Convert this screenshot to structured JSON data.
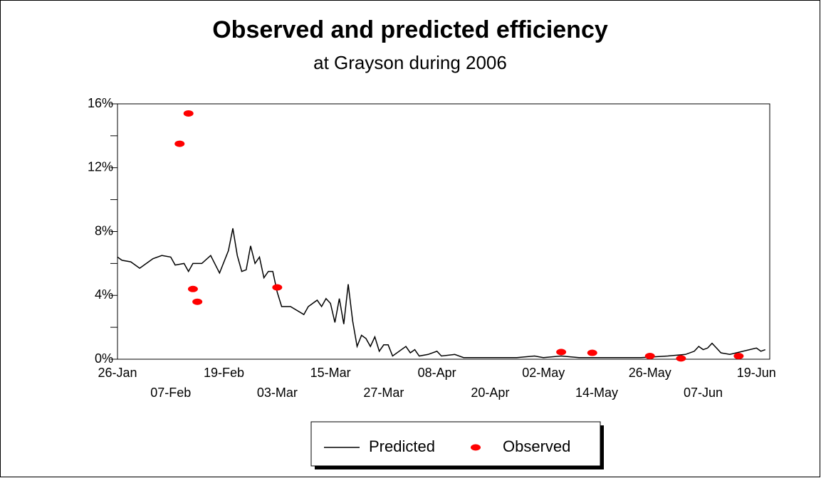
{
  "chart_data": {
    "type": "line",
    "title": "Observed and predicted efficiency",
    "subtitle": "at Grayson during 2006",
    "xlim": [
      "2006-01-26",
      "2006-06-22"
    ],
    "xticks": [
      {
        "value": "2006-01-26",
        "label": "26-Jan"
      },
      {
        "value": "2006-02-07",
        "label": "07-Feb"
      },
      {
        "value": "2006-02-19",
        "label": "19-Feb"
      },
      {
        "value": "2006-03-03",
        "label": "03-Mar"
      },
      {
        "value": "2006-03-15",
        "label": "15-Mar"
      },
      {
        "value": "2006-03-27",
        "label": "27-Mar"
      },
      {
        "value": "2006-04-08",
        "label": "08-Apr"
      },
      {
        "value": "2006-04-20",
        "label": "20-Apr"
      },
      {
        "value": "2006-05-02",
        "label": "02-May"
      },
      {
        "value": "2006-05-14",
        "label": "14-May"
      },
      {
        "value": "2006-05-26",
        "label": "26-May"
      },
      {
        "value": "2006-06-07",
        "label": "07-Jun"
      },
      {
        "value": "2006-06-19",
        "label": "19-Jun"
      }
    ],
    "ylim": [
      0,
      16
    ],
    "yticks": [
      {
        "value": 0,
        "label": "0%"
      },
      {
        "value": 4,
        "label": "4%"
      },
      {
        "value": 8,
        "label": "8%"
      },
      {
        "value": 12,
        "label": "12%"
      },
      {
        "value": 16,
        "label": "16%"
      }
    ],
    "yminor_ticks": [
      2,
      6,
      10,
      14
    ],
    "legend": "bottom",
    "series": [
      {
        "name": "Predicted",
        "color": "#000000",
        "style": "line",
        "x": [
          "2006-01-26",
          "2006-01-27",
          "2006-01-29",
          "2006-01-31",
          "2006-02-02",
          "2006-02-03",
          "2006-02-05",
          "2006-02-07",
          "2006-02-08",
          "2006-02-10",
          "2006-02-11",
          "2006-02-12",
          "2006-02-14",
          "2006-02-16",
          "2006-02-18",
          "2006-02-20",
          "2006-02-21",
          "2006-02-22",
          "2006-02-23",
          "2006-02-24",
          "2006-02-25",
          "2006-02-26",
          "2006-02-27",
          "2006-02-28",
          "2006-03-01",
          "2006-03-02",
          "2006-03-03",
          "2006-03-04",
          "2006-03-06",
          "2006-03-09",
          "2006-03-10",
          "2006-03-12",
          "2006-03-13",
          "2006-03-14",
          "2006-03-15",
          "2006-03-16",
          "2006-03-17",
          "2006-03-18",
          "2006-03-19",
          "2006-03-20",
          "2006-03-21",
          "2006-03-22",
          "2006-03-23",
          "2006-03-24",
          "2006-03-25",
          "2006-03-26",
          "2006-03-27",
          "2006-03-28",
          "2006-03-29",
          "2006-04-01",
          "2006-04-02",
          "2006-04-03",
          "2006-04-04",
          "2006-04-06",
          "2006-04-08",
          "2006-04-09",
          "2006-04-12",
          "2006-04-14",
          "2006-04-21",
          "2006-04-26",
          "2006-04-30",
          "2006-05-02",
          "2006-05-06",
          "2006-05-10",
          "2006-05-16",
          "2006-05-24",
          "2006-05-30",
          "2006-06-03",
          "2006-06-05",
          "2006-06-06",
          "2006-06-07",
          "2006-06-08",
          "2006-06-09",
          "2006-06-10",
          "2006-06-11",
          "2006-06-13",
          "2006-06-16",
          "2006-06-19",
          "2006-06-20",
          "2006-06-21"
        ],
        "values": [
          6.4,
          6.2,
          6.1,
          5.7,
          6.1,
          6.3,
          6.5,
          6.4,
          5.9,
          6.0,
          5.5,
          6.0,
          6.0,
          6.5,
          5.4,
          6.8,
          8.2,
          6.5,
          5.5,
          5.6,
          7.1,
          6.0,
          6.4,
          5.1,
          5.5,
          5.5,
          4.2,
          3.3,
          3.3,
          2.8,
          3.3,
          3.7,
          3.3,
          3.8,
          3.5,
          2.3,
          3.8,
          2.2,
          4.7,
          2.4,
          0.8,
          1.5,
          1.3,
          0.8,
          1.4,
          0.5,
          0.9,
          0.9,
          0.2,
          0.8,
          0.4,
          0.6,
          0.2,
          0.3,
          0.5,
          0.2,
          0.3,
          0.1,
          0.1,
          0.1,
          0.2,
          0.1,
          0.2,
          0.1,
          0.1,
          0.1,
          0.2,
          0.3,
          0.5,
          0.8,
          0.6,
          0.7,
          1.0,
          0.7,
          0.4,
          0.3,
          0.5,
          0.7,
          0.5,
          0.6
        ]
      },
      {
        "name": "Observed",
        "color": "#ff0000",
        "style": "points",
        "x": [
          "2006-02-09",
          "2006-02-11",
          "2006-02-12",
          "2006-02-13",
          "2006-03-03",
          "2006-05-06",
          "2006-05-13",
          "2006-05-26",
          "2006-06-02",
          "2006-06-15"
        ],
        "values": [
          13.5,
          15.4,
          4.4,
          3.6,
          4.5,
          0.45,
          0.4,
          0.2,
          0.05,
          0.2
        ]
      }
    ]
  }
}
